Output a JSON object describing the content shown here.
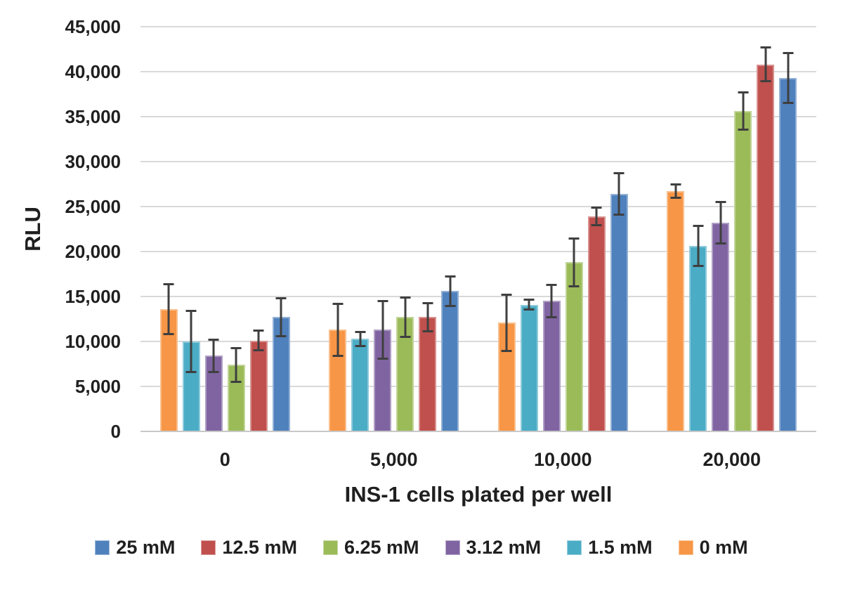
{
  "chart_data": {
    "type": "bar",
    "title": "",
    "xlabel": "INS-1 cells plated per well",
    "ylabel": "RLU",
    "categories": [
      "0",
      "5,000",
      "10,000",
      "20,000"
    ],
    "ylim": [
      0,
      45000
    ],
    "grid": true,
    "legend_position": "bottom",
    "error_bars": true,
    "error_bar_color": "#3f3f3f",
    "gridline_color": "#d9d9d9",
    "y_ticks": [
      {
        "value": 0,
        "label": "0"
      },
      {
        "value": 5000,
        "label": "5,000"
      },
      {
        "value": 10000,
        "label": "10,000"
      },
      {
        "value": 15000,
        "label": "15,000"
      },
      {
        "value": 20000,
        "label": "20,000"
      },
      {
        "value": 25000,
        "label": "25,000"
      },
      {
        "value": 30000,
        "label": "30,000"
      },
      {
        "value": 35000,
        "label": "35,000"
      },
      {
        "value": 40000,
        "label": "40,000"
      },
      {
        "value": 45000,
        "label": "45,000"
      }
    ],
    "series": [
      {
        "name": "0 mM",
        "color": "#F79646",
        "values": [
          13600,
          11300,
          12100,
          26700
        ],
        "errors": [
          2900,
          3000,
          3250,
          850
        ]
      },
      {
        "name": "1.5 mM",
        "color": "#4BACC6",
        "values": [
          10000,
          10300,
          14100,
          20600
        ],
        "errors": [
          3550,
          900,
          700,
          2350
        ]
      },
      {
        "name": "3.12 mM",
        "color": "#8064A2",
        "values": [
          8400,
          11300,
          14500,
          23200
        ],
        "errors": [
          1900,
          3300,
          1900,
          2450
        ]
      },
      {
        "name": "6.25 mM",
        "color": "#9BBB59",
        "values": [
          7400,
          12700,
          18800,
          35600
        ],
        "errors": [
          2000,
          2300,
          2800,
          2200
        ]
      },
      {
        "name": "12.5 mM",
        "color": "#C0504D",
        "values": [
          10100,
          12700,
          23900,
          40800
        ],
        "errors": [
          1200,
          1650,
          1100,
          2000
        ]
      },
      {
        "name": "25 mM",
        "color": "#4F81BD",
        "values": [
          12700,
          15600,
          26400,
          39300
        ],
        "errors": [
          2200,
          1750,
          2400,
          2900
        ]
      }
    ],
    "legend": [
      "25 mM",
      "12.5 mM",
      "6.25 mM",
      "3.12 mM",
      "1.5 mM",
      "0 mM"
    ]
  }
}
